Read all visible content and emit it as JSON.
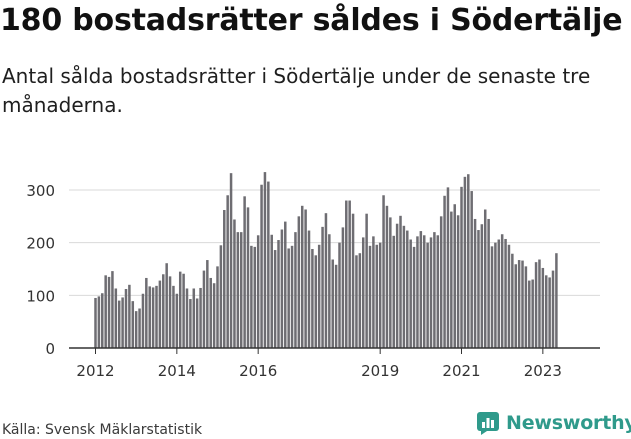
{
  "header": {
    "title": "180 bostadsrätter såldes i Södertälje",
    "subtitle": "Antal sålda bostadsrätter i Södertälje under de senaste tre månaderna."
  },
  "footer": {
    "source": "Källa: Svensk Mäklarstatistik",
    "brand": "Newsworthy",
    "brand_icon": "newsworthy-logo-icon"
  },
  "colors": {
    "bar": "#6e6d72",
    "highlight": "#2a9d8f",
    "grid": "#d9d9d9",
    "axis": "#333333",
    "brand": "#2f9a8b"
  },
  "chart_data": {
    "type": "bar",
    "title": "180 bostadsrätter såldes i Södertälje",
    "subtitle": "Antal sålda bostadsrätter i Södertälje under de senaste tre månaderna.",
    "xlabel": "",
    "ylabel": "",
    "ylim": [
      0,
      340
    ],
    "yticks": [
      0,
      100,
      200,
      300
    ],
    "grid": true,
    "legend": "none",
    "x_start": "2012-01",
    "x_end": "2024-03",
    "xticks": [
      {
        "label": "2012",
        "index": 0
      },
      {
        "label": "2014",
        "index": 24
      },
      {
        "label": "2016",
        "index": 48
      },
      {
        "label": "2019",
        "index": 84
      },
      {
        "label": "2021",
        "index": 108
      },
      {
        "label": "2023",
        "index": 132
      }
    ],
    "highlight_index": 146,
    "highlight_label": "180",
    "values": [
      95,
      98,
      104,
      138,
      135,
      146,
      113,
      90,
      96,
      112,
      120,
      89,
      70,
      75,
      103,
      133,
      117,
      115,
      118,
      128,
      140,
      161,
      136,
      118,
      103,
      145,
      141,
      113,
      93,
      113,
      94,
      114,
      147,
      167,
      133,
      123,
      155,
      195,
      262,
      290,
      332,
      244,
      220,
      220,
      288,
      267,
      194,
      192,
      214,
      310,
      334,
      316,
      215,
      186,
      205,
      225,
      240,
      189,
      194,
      220,
      250,
      270,
      263,
      223,
      188,
      176,
      196,
      230,
      256,
      216,
      168,
      158,
      200,
      229,
      280,
      280,
      255,
      176,
      180,
      210,
      255,
      194,
      212,
      196,
      200,
      290,
      270,
      248,
      213,
      236,
      251,
      232,
      223,
      206,
      192,
      212,
      222,
      214,
      200,
      210,
      220,
      214,
      250,
      289,
      305,
      259,
      273,
      252,
      306,
      325,
      330,
      298,
      245,
      224,
      235,
      263,
      245,
      193,
      200,
      206,
      216,
      207,
      196,
      179,
      159,
      167,
      166,
      155,
      128,
      130,
      163,
      168,
      152,
      138,
      134,
      147,
      180
    ]
  }
}
